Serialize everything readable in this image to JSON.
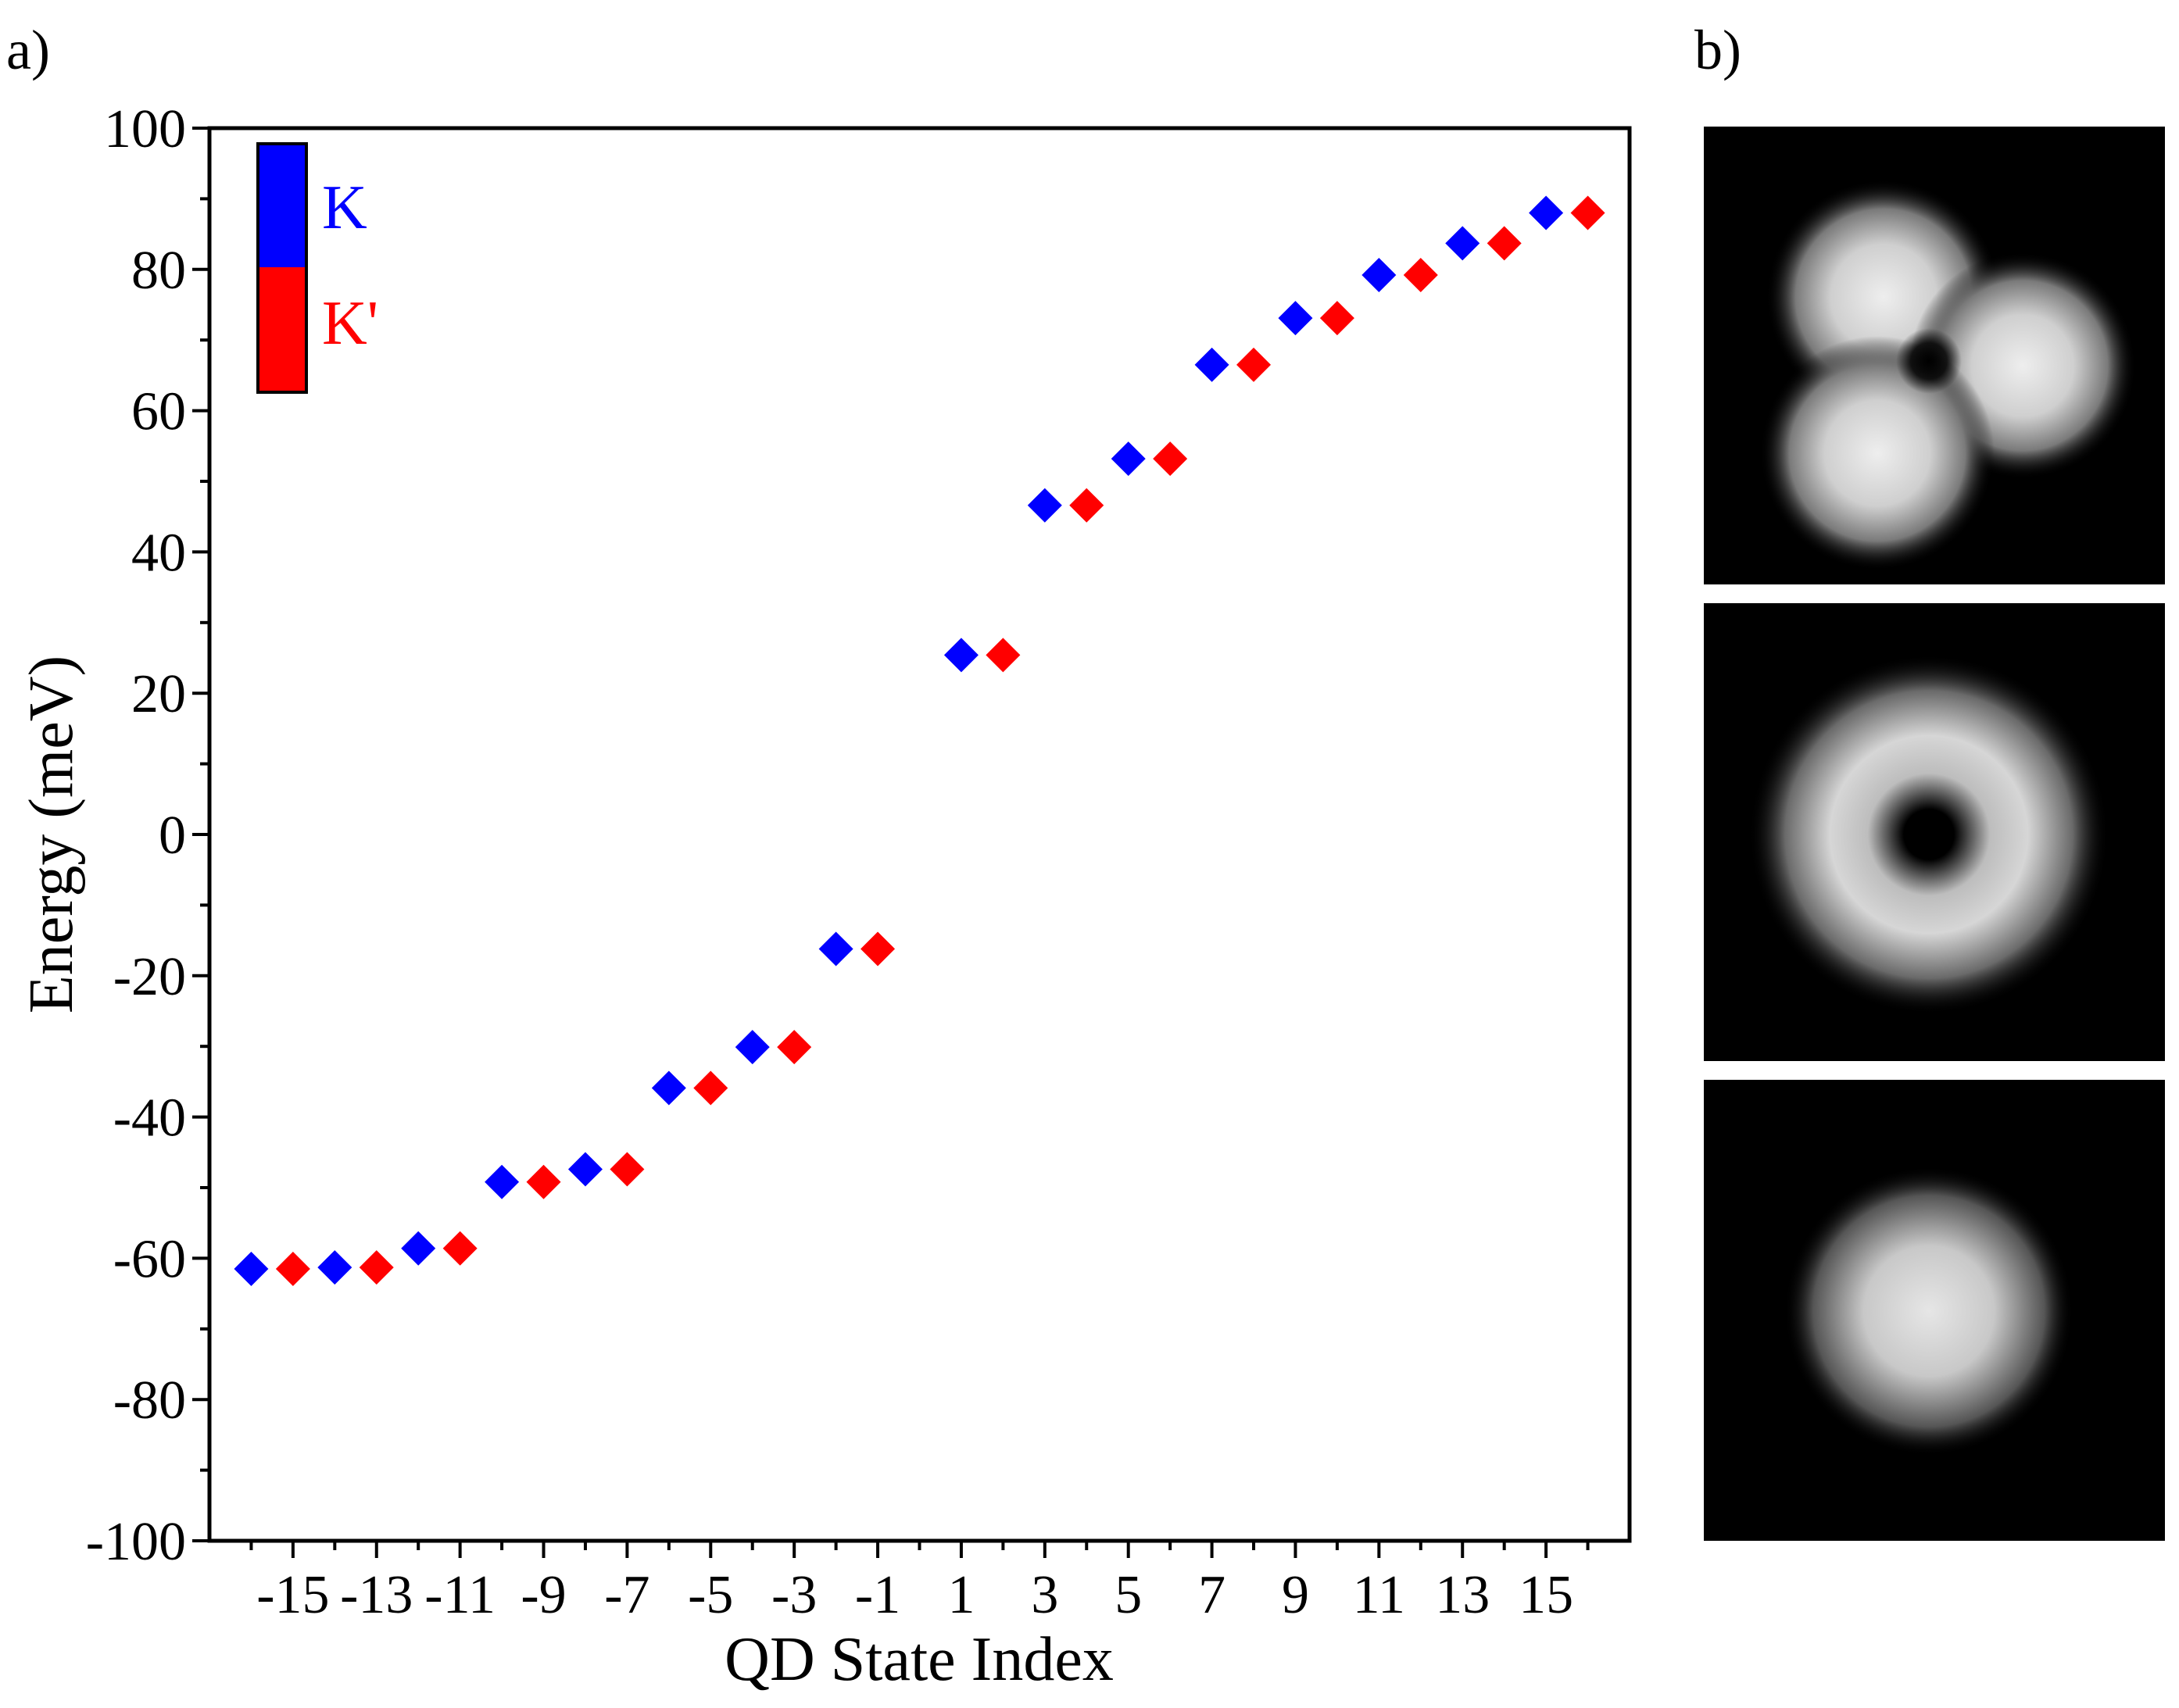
{
  "panel_labels": {
    "a": "a)",
    "b": "b)"
  },
  "chart_data": {
    "type": "scatter",
    "xlabel": "QD State Index",
    "ylabel": "Energy (meV)",
    "xlim": [
      -17,
      17
    ],
    "ylim": [
      -100,
      100
    ],
    "xticks": [
      -15,
      -13,
      -11,
      -9,
      -7,
      -5,
      -3,
      -1,
      1,
      3,
      5,
      7,
      9,
      11,
      13,
      15
    ],
    "xtick_labels": [
      "-15",
      "-13",
      "-11",
      "-9",
      "-7",
      "-5",
      "-3",
      "-1",
      "1",
      "3",
      "5",
      "7",
      "9",
      "11",
      "13",
      "15"
    ],
    "yticks": [
      -100,
      -80,
      -60,
      -40,
      -20,
      0,
      20,
      40,
      60,
      80,
      100
    ],
    "ytick_labels": [
      "-100",
      "-80",
      "-60",
      "-40",
      "-20",
      "0",
      "20",
      "40",
      "60",
      "80",
      "100"
    ],
    "legend": {
      "placement": "top-left",
      "entries": [
        "K",
        "K'"
      ]
    },
    "series": [
      {
        "name": "K",
        "color": "#0000ff",
        "marker": "diamond",
        "x": [
          -16,
          -14,
          -12,
          -10,
          -8,
          -6,
          -4,
          -2,
          1,
          3,
          5,
          7,
          9,
          11,
          13,
          15
        ],
        "y": [
          -61.5,
          -61.3,
          -58.6,
          -49.2,
          -47.4,
          -35.9,
          -30.1,
          -16.2,
          25.4,
          46.6,
          53.2,
          66.5,
          73.1,
          79.2,
          83.7,
          88
        ]
      },
      {
        "name": "K'",
        "color": "#ff0000",
        "marker": "diamond",
        "x": [
          -15,
          -13,
          -11,
          -9,
          -7,
          -5,
          -3,
          -1,
          2,
          4,
          6,
          8,
          10,
          12,
          14,
          16
        ],
        "y": [
          -61.5,
          -61.3,
          -58.6,
          -49.2,
          -47.4,
          -35.9,
          -30.1,
          -16.2,
          25.4,
          46.6,
          53.2,
          66.5,
          73.1,
          79.2,
          83.7,
          88
        ]
      }
    ]
  },
  "wavefunction_panels": [
    {
      "name": "top",
      "description_icon": "three-lobe-density-icon"
    },
    {
      "name": "middle",
      "description_icon": "ring-density-icon"
    },
    {
      "name": "bottom",
      "description_icon": "disk-density-icon"
    }
  ]
}
